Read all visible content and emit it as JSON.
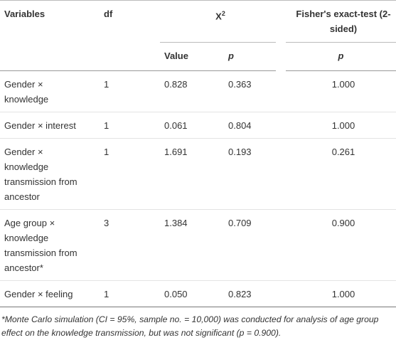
{
  "table": {
    "header": {
      "variables": "Variables",
      "df": "df",
      "chi": {
        "label": "X",
        "superscript": "2"
      },
      "fisher": "Fisher's exact-test (2-sided)",
      "value": "Value",
      "p": "p",
      "fisher_p": "p"
    },
    "rows": [
      [
        "Gender × knowledge",
        "1",
        "0.828",
        "0.363",
        "1.000"
      ],
      [
        "Gender × interest",
        "1",
        "0.061",
        "0.804",
        "1.000"
      ],
      [
        "Gender × knowledge transmission from ancestor",
        "1",
        "1.691",
        "0.193",
        "0.261"
      ],
      [
        "Age group × knowledge transmission from ancestor*",
        "3",
        "1.384",
        "0.709",
        "0.900"
      ],
      [
        "Gender × feeling",
        "1",
        "0.050",
        "0.823",
        "1.000"
      ]
    ],
    "footnote": "*Monte Carlo simulation (CI = 95%, sample no. = 10,000) was conducted for analysis of age group effect on the knowledge transmission, but was not significant (p = 0.900)."
  }
}
